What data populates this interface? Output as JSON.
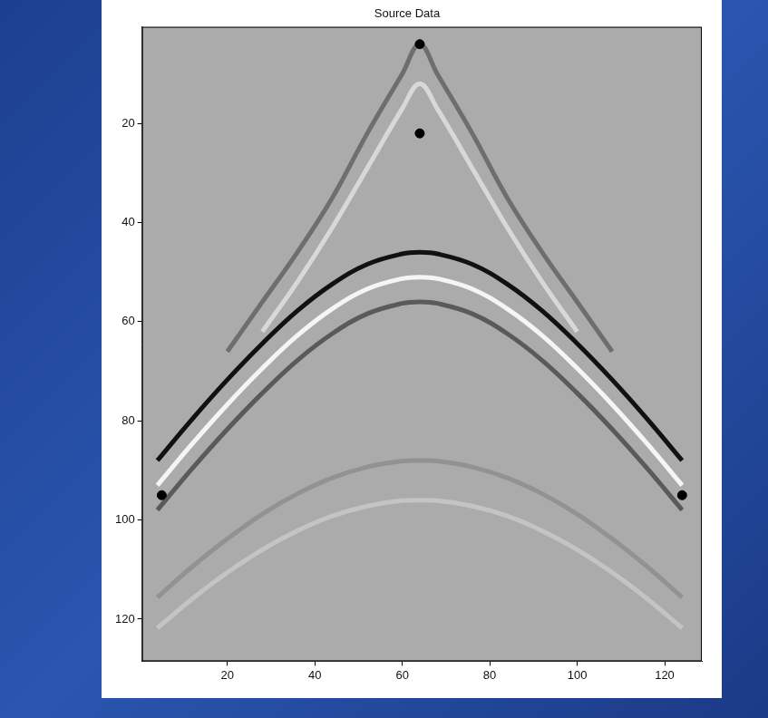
{
  "chart_data": {
    "type": "line",
    "title": "Source Data",
    "xlim": [
      0.5,
      128.5
    ],
    "ylim": [
      0.5,
      128.5
    ],
    "xticks": [
      20,
      40,
      60,
      80,
      100,
      120
    ],
    "yticks": [
      20,
      40,
      60,
      80,
      100,
      120
    ],
    "grid": false,
    "series": [
      {
        "type": "scatter",
        "marker": "circle",
        "color": "#000000",
        "x": [
          5,
          64,
          64,
          124
        ],
        "values": [
          95,
          4,
          22,
          95
        ]
      },
      {
        "color": "#111111",
        "line_style": "solid",
        "x": [
          4,
          12,
          20,
          28,
          36,
          44,
          52,
          60,
          64,
          68,
          76,
          84,
          92,
          100,
          108,
          116,
          124
        ],
        "values": [
          88.0,
          79.6,
          71.7,
          64.4,
          57.8,
          52.4,
          48.4,
          46.3,
          46.0,
          46.3,
          48.4,
          52.4,
          57.8,
          64.4,
          71.7,
          79.6,
          88.0
        ]
      },
      {
        "color": "#f5f5f5",
        "line_style": "solid",
        "x": [
          4,
          12,
          20,
          28,
          36,
          44,
          52,
          60,
          64,
          68,
          76,
          84,
          92,
          100,
          108,
          116,
          124
        ],
        "values": [
          93.0,
          84.6,
          76.7,
          69.4,
          62.8,
          57.4,
          53.4,
          51.3,
          51.0,
          51.3,
          53.4,
          57.4,
          62.8,
          69.4,
          76.7,
          84.6,
          93.0
        ]
      },
      {
        "color": "#5a5a5a",
        "line_style": "solid",
        "x": [
          4,
          12,
          20,
          28,
          36,
          44,
          52,
          60,
          64,
          68,
          76,
          84,
          92,
          100,
          108,
          116,
          124
        ],
        "values": [
          98.0,
          89.6,
          81.7,
          74.4,
          67.8,
          62.4,
          58.4,
          56.3,
          56.0,
          56.3,
          58.4,
          62.4,
          67.8,
          74.4,
          81.7,
          89.6,
          98.0
        ]
      },
      {
        "color": "#929292",
        "line_style": "solid",
        "x": [
          4,
          12,
          20,
          28,
          36,
          44,
          52,
          60,
          64,
          68,
          76,
          84,
          92,
          100,
          108,
          116,
          124
        ],
        "values": [
          115.6,
          109.4,
          103.8,
          98.8,
          94.7,
          91.5,
          89.3,
          88.1,
          88.0,
          88.1,
          89.3,
          91.5,
          94.7,
          98.8,
          103.8,
          109.4,
          115.6
        ]
      },
      {
        "color": "#c4c4c4",
        "line_style": "solid",
        "x": [
          4,
          12,
          20,
          28,
          36,
          44,
          52,
          60,
          64,
          68,
          76,
          84,
          92,
          100,
          108,
          116,
          124
        ],
        "values": [
          121.8,
          115.9,
          110.6,
          106.0,
          102.2,
          99.2,
          97.2,
          96.1,
          96.0,
          96.1,
          97.2,
          99.2,
          102.2,
          106.0,
          110.6,
          115.9,
          121.8
        ]
      },
      {
        "color": "#6e6e6e",
        "line_style": "solid",
        "x": [
          20,
          28,
          36,
          44,
          52,
          60,
          64,
          68,
          76,
          84,
          92,
          100,
          108
        ],
        "values": [
          66,
          56,
          46,
          35,
          22,
          10,
          4,
          10,
          22,
          35,
          46,
          56,
          66
        ]
      },
      {
        "color": "#d8d8d8",
        "line_style": "solid",
        "x": [
          28,
          36,
          44,
          52,
          60,
          64,
          68,
          76,
          84,
          92,
          100
        ],
        "values": [
          62,
          52,
          41,
          29,
          17,
          12,
          17,
          29,
          41,
          52,
          62
        ]
      }
    ]
  }
}
